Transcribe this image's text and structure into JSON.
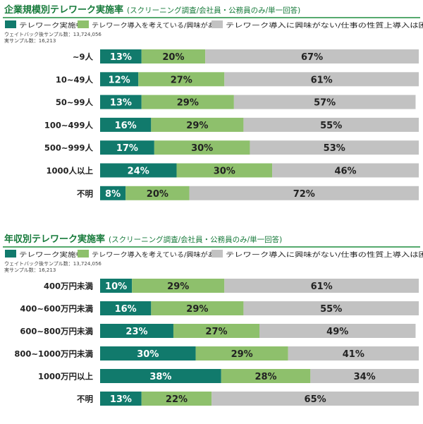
{
  "colors": {
    "series": [
      "#117a6c",
      "#8ec06c",
      "#c2c2c2"
    ],
    "title_text": "#167a3a",
    "title_rule": "#1e8e3e",
    "label_dark": "#ffffff",
    "label_light": "#222222"
  },
  "chart_data": [
    {
      "type": "bar",
      "orientation": "horizontal",
      "stacked": "percent",
      "title": "企業規模別テレワーク実施率",
      "subtitle": "(スクリーニング調査/会社員・公務員のみ/単一回答)",
      "sample_note": [
        "ウェイトバック後サンプル数：13,724,056",
        "実サンプル数：16,213"
      ],
      "categories": [
        "~9人",
        "10~49人",
        "50~99人",
        "100~499人",
        "500~999人",
        "1000人以上",
        "不明"
      ],
      "series": [
        {
          "name": "テレワーク実施中",
          "values": [
            13,
            12,
            13,
            16,
            17,
            24,
            8
          ]
        },
        {
          "name": "テレワーク導入を考えている/興味がある",
          "values": [
            20,
            27,
            29,
            29,
            30,
            30,
            20
          ]
        },
        {
          "name": "テレワーク導入に興味がない/仕事の性質上導入は困難",
          "values": [
            67,
            61,
            57,
            55,
            53,
            46,
            72
          ]
        }
      ],
      "value_suffix": "%",
      "xlim": [
        0,
        100
      ],
      "legend": "top"
    },
    {
      "type": "bar",
      "orientation": "horizontal",
      "stacked": "percent",
      "title": "年収別テレワーク実施率",
      "subtitle": "(スクリーニング調査/会社員・公務員のみ/単一回答)",
      "sample_note": [
        "ウェイトバック後サンプル数：13,724,056",
        "実サンプル数：16,213"
      ],
      "categories": [
        "400万円未満",
        "400~600万円未満",
        "600~800万円未満",
        "800~1000万円未満",
        "1000万円以上",
        "不明"
      ],
      "series": [
        {
          "name": "テレワーク実施中",
          "values": [
            10,
            16,
            23,
            30,
            38,
            13
          ]
        },
        {
          "name": "テレワーク導入を考えている/興味がある",
          "values": [
            29,
            29,
            27,
            29,
            28,
            22
          ]
        },
        {
          "name": "テレワーク導入に興味がない/仕事の性質上導入は困難",
          "values": [
            61,
            55,
            49,
            41,
            34,
            65
          ]
        }
      ],
      "value_suffix": "%",
      "xlim": [
        0,
        100
      ],
      "legend": "top"
    }
  ]
}
